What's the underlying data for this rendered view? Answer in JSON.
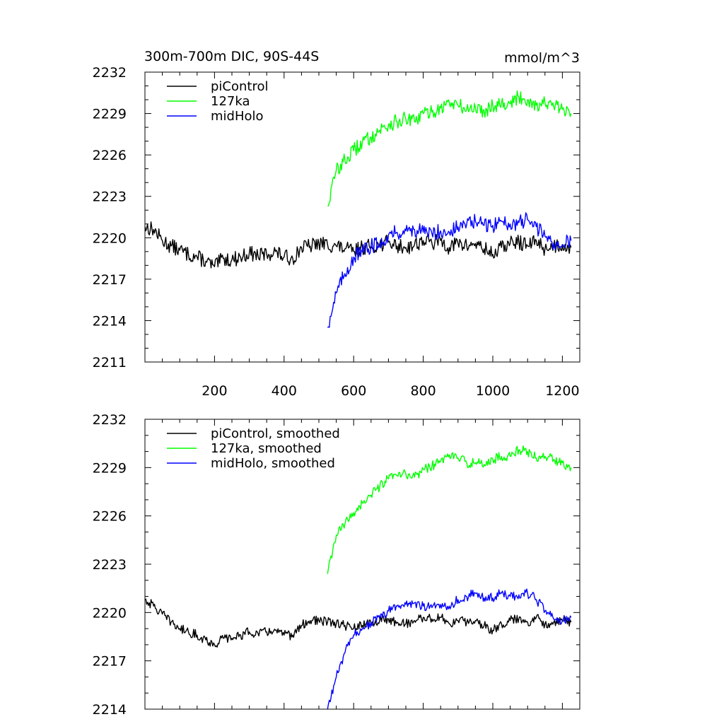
{
  "chart_data": [
    {
      "type": "line",
      "title": "300m-700m DIC, 90S-44S",
      "units": "mmol/m^3",
      "xlabel": "",
      "ylabel": "",
      "xlim": [
        0,
        1250
      ],
      "ylim": [
        2211,
        2232
      ],
      "xticks": [
        200,
        400,
        600,
        800,
        1000,
        1200
      ],
      "xtick_labels": [
        "200",
        "400",
        "600",
        "800",
        "1000",
        "1200"
      ],
      "yticks": [
        2211,
        2214,
        2217,
        2220,
        2223,
        2226,
        2229,
        2232
      ],
      "ytick_labels": [
        "2211",
        "2214",
        "2217",
        "2220",
        "2223",
        "2226",
        "2229",
        "2232"
      ],
      "grid": false,
      "legend_position": "top-left",
      "series": [
        {
          "name": "piControl",
          "color": "#000000",
          "x": [
            0,
            25,
            50,
            75,
            100,
            125,
            150,
            175,
            200,
            225,
            250,
            275,
            300,
            325,
            350,
            375,
            400,
            425,
            450,
            475,
            500,
            525,
            550,
            575,
            600,
            625,
            650,
            675,
            700,
            725,
            750,
            775,
            800,
            825,
            850,
            875,
            900,
            925,
            950,
            975,
            1000,
            1025,
            1050,
            1075,
            1100,
            1125,
            1150,
            1175,
            1200,
            1225
          ],
          "values": [
            2220.8,
            2220.6,
            2219.8,
            2219.4,
            2219.1,
            2218.8,
            2218.6,
            2218.3,
            2217.9,
            2218.5,
            2218.4,
            2218.6,
            2218.9,
            2218.7,
            2218.8,
            2219.0,
            2218.6,
            2218.5,
            2219.3,
            2219.4,
            2219.6,
            2219.5,
            2219.4,
            2219.2,
            2219.0,
            2219.3,
            2219.4,
            2219.5,
            2219.7,
            2219.4,
            2219.3,
            2219.5,
            2219.8,
            2219.6,
            2219.8,
            2219.3,
            2219.6,
            2219.4,
            2219.6,
            2219.2,
            2218.8,
            2219.3,
            2219.6,
            2219.7,
            2219.4,
            2219.8,
            2219.2,
            2219.4,
            2219.5,
            2219.3
          ]
        },
        {
          "name": "127ka",
          "color": "#00ff00",
          "x": [
            525,
            550,
            575,
            600,
            625,
            650,
            675,
            700,
            725,
            750,
            775,
            800,
            825,
            850,
            875,
            900,
            925,
            950,
            975,
            1000,
            1025,
            1050,
            1075,
            1100,
            1125,
            1150,
            1175,
            1200,
            1225
          ],
          "values": [
            2222.3,
            2224.9,
            2225.6,
            2226.3,
            2226.9,
            2227.3,
            2227.8,
            2228.2,
            2228.4,
            2228.6,
            2228.4,
            2229.0,
            2229.1,
            2229.4,
            2229.8,
            2229.6,
            2229.3,
            2229.4,
            2229.2,
            2229.6,
            2229.8,
            2229.7,
            2230.2,
            2230.0,
            2229.6,
            2229.8,
            2229.5,
            2229.3,
            2229.0
          ]
        },
        {
          "name": "midHolo",
          "color": "#0000ff",
          "x": [
            525,
            550,
            575,
            600,
            625,
            650,
            675,
            700,
            725,
            750,
            775,
            800,
            825,
            850,
            875,
            900,
            925,
            950,
            975,
            1000,
            1025,
            1050,
            1075,
            1100,
            1125,
            1150,
            1175,
            1200,
            1225
          ],
          "values": [
            2213.5,
            2216.0,
            2217.4,
            2218.6,
            2219.0,
            2219.4,
            2219.6,
            2220.2,
            2220.4,
            2220.5,
            2220.6,
            2220.4,
            2220.3,
            2220.5,
            2220.4,
            2220.8,
            2221.0,
            2221.2,
            2220.9,
            2220.9,
            2221.2,
            2221.0,
            2221.1,
            2221.3,
            2220.8,
            2220.1,
            2219.6,
            2219.5,
            2219.8
          ]
        }
      ]
    },
    {
      "type": "line",
      "title": "",
      "xlabel": "",
      "ylabel": "",
      "xlim": [
        0,
        1250
      ],
      "ylim": [
        2214,
        2232
      ],
      "xticks": [
        200,
        400,
        600,
        800,
        1000,
        1200
      ],
      "xtick_labels": [],
      "yticks": [
        2214,
        2217,
        2220,
        2223,
        2226,
        2229,
        2232
      ],
      "ytick_labels": [
        "2214",
        "2217",
        "2220",
        "2223",
        "2226",
        "2229",
        "2232"
      ],
      "grid": false,
      "legend_position": "top-left",
      "series": [
        {
          "name": "piControl, smoothed",
          "color": "#000000",
          "x": [
            0,
            25,
            50,
            75,
            100,
            125,
            150,
            175,
            200,
            225,
            250,
            275,
            300,
            325,
            350,
            375,
            400,
            425,
            450,
            475,
            500,
            525,
            550,
            575,
            600,
            625,
            650,
            675,
            700,
            725,
            750,
            775,
            800,
            825,
            850,
            875,
            900,
            925,
            950,
            975,
            1000,
            1025,
            1050,
            1075,
            1100,
            1125,
            1150,
            1175,
            1200,
            1225
          ],
          "values": [
            2220.8,
            2220.4,
            2219.9,
            2219.4,
            2219.0,
            2218.8,
            2218.6,
            2218.3,
            2218.0,
            2218.4,
            2218.4,
            2218.6,
            2218.8,
            2218.7,
            2218.8,
            2218.9,
            2218.6,
            2218.6,
            2219.2,
            2219.5,
            2219.5,
            2219.4,
            2219.3,
            2219.2,
            2219.0,
            2219.2,
            2219.3,
            2219.5,
            2219.6,
            2219.4,
            2219.3,
            2219.5,
            2219.7,
            2219.6,
            2219.7,
            2219.3,
            2219.5,
            2219.4,
            2219.5,
            2219.2,
            2218.9,
            2219.3,
            2219.5,
            2219.6,
            2219.4,
            2219.7,
            2219.3,
            2219.4,
            2219.5,
            2219.4
          ]
        },
        {
          "name": "127ka, smoothed",
          "color": "#00ff00",
          "x": [
            525,
            550,
            575,
            600,
            625,
            650,
            675,
            700,
            725,
            750,
            775,
            800,
            825,
            850,
            875,
            900,
            925,
            950,
            975,
            1000,
            1025,
            1050,
            1075,
            1100,
            1125,
            1150,
            1175,
            1200,
            1225
          ],
          "values": [
            2222.4,
            2224.8,
            2225.5,
            2226.2,
            2226.8,
            2227.3,
            2227.8,
            2228.3,
            2228.5,
            2228.6,
            2228.4,
            2228.9,
            2229.1,
            2229.4,
            2229.8,
            2229.6,
            2229.3,
            2229.3,
            2229.2,
            2229.5,
            2229.7,
            2229.7,
            2230.1,
            2230.0,
            2229.6,
            2229.7,
            2229.5,
            2229.3,
            2229.0
          ]
        },
        {
          "name": "midHolo, smoothed",
          "color": "#0000ff",
          "x": [
            525,
            550,
            575,
            600,
            625,
            650,
            675,
            700,
            725,
            750,
            775,
            800,
            825,
            850,
            875,
            900,
            925,
            950,
            975,
            1000,
            1025,
            1050,
            1075,
            1100,
            1125,
            1150,
            1175,
            1200,
            1225
          ],
          "values": [
            2214.0,
            2216.0,
            2217.5,
            2218.6,
            2219.0,
            2219.4,
            2219.6,
            2220.1,
            2220.4,
            2220.5,
            2220.6,
            2220.4,
            2220.3,
            2220.5,
            2220.4,
            2220.8,
            2221.0,
            2221.2,
            2220.9,
            2220.9,
            2221.2,
            2221.0,
            2221.1,
            2221.2,
            2220.8,
            2220.1,
            2219.6,
            2219.5,
            2219.7
          ]
        }
      ]
    }
  ]
}
